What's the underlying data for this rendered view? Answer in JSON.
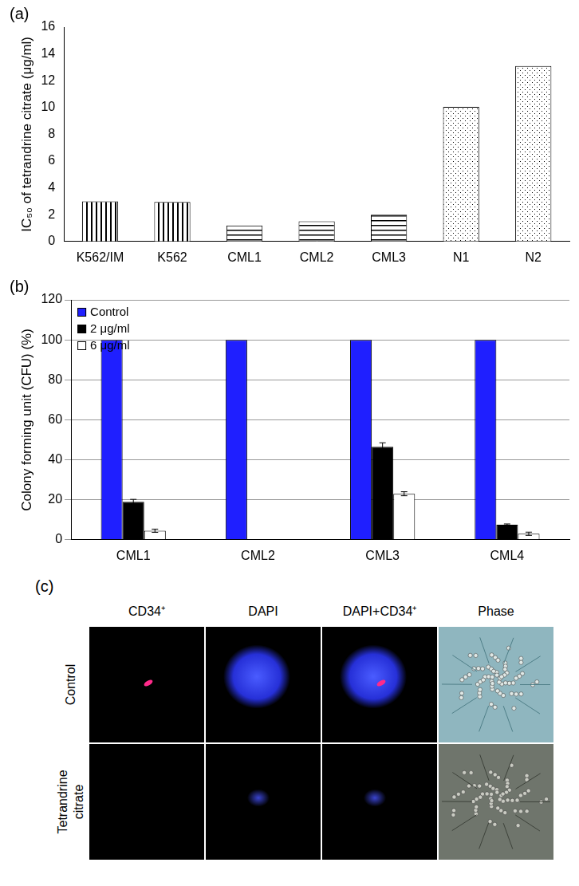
{
  "chart_data": [
    {
      "type": "bar",
      "title": "(a)",
      "y_label": "IC₅₀ of tetrandrine citrate (μg/ml)",
      "categories": [
        "K562/IM",
        "K562",
        "CML1",
        "CML2",
        "CML3",
        "N1",
        "N2"
      ],
      "values": [
        3.0,
        2.95,
        1.2,
        1.5,
        2.0,
        10.05,
        13.1
      ],
      "colors": [
        "#ffffff",
        "#ffffff",
        "#ffffff",
        "#ffffff",
        "#ffffff",
        "#ffffff",
        "#ffffff"
      ],
      "ylim": [
        0,
        16
      ],
      "yticks": [
        0,
        2,
        4,
        6,
        8,
        10,
        12,
        14,
        16
      ],
      "grid": false
    },
    {
      "type": "bar",
      "title": "(b)",
      "y_label": "Colony forming unit (CFU) (%)",
      "categories": [
        "CML1",
        "CML2",
        "CML3",
        "CML4"
      ],
      "series": [
        {
          "name": "Control",
          "color": "#1f1fff",
          "values": [
            100,
            100,
            100,
            100
          ],
          "errors": [
            null,
            null,
            null,
            null
          ]
        },
        {
          "name": "2 μg/ml",
          "color": "#000000",
          "values": [
            19,
            0,
            46.5,
            7.5
          ],
          "errors": [
            1.2,
            null,
            2.0,
            0.4
          ]
        },
        {
          "name": "6 μg/ml",
          "color": "#ffffff",
          "values": [
            4.5,
            0,
            23,
            3
          ],
          "errors": [
            0.8,
            null,
            1.0,
            0.8
          ]
        }
      ],
      "ylim": [
        0,
        120
      ],
      "yticks": [
        0,
        20,
        40,
        60,
        80,
        100,
        120
      ],
      "grid": true,
      "legend": "upper left"
    }
  ],
  "image_panel": {
    "title": "(c)",
    "columns": [
      "CD34⁺",
      "DAPI",
      "DAPI+CD34⁺",
      "Phase"
    ],
    "rows": [
      "Control",
      "Tetrandrine citrate"
    ]
  }
}
